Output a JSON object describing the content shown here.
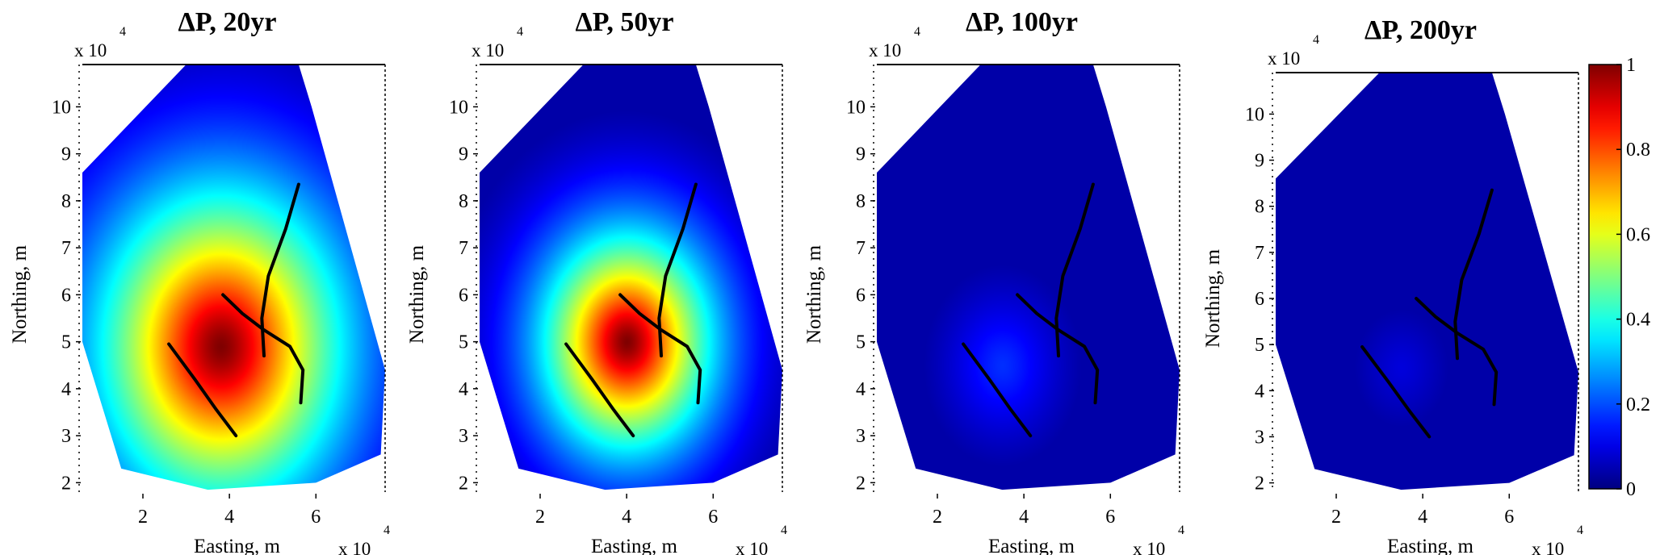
{
  "chart_data": [
    {
      "type": "heatmap",
      "title": "ΔP, 20yr",
      "xlabel": "Easting, m",
      "ylabel": "Northing, m",
      "x_multiplier": "x 10",
      "y_multiplier": "x 10",
      "multiplier_exponent": "4",
      "x_ticks": [
        "2",
        "4",
        "6"
      ],
      "y_ticks": [
        "2",
        "3",
        "4",
        "5",
        "6",
        "7",
        "8",
        "9",
        "10"
      ],
      "xlim": [
        0.6,
        7.6
      ],
      "ylim": [
        1.8,
        10.9
      ],
      "peak": {
        "x": 3.8,
        "y": 4.9,
        "value": 1.0
      },
      "spread": 0.36
    },
    {
      "type": "heatmap",
      "title": "ΔP, 50yr",
      "xlabel": "Easting, m",
      "ylabel": "Northing, m",
      "x_multiplier": "x 10",
      "y_multiplier": "x 10",
      "multiplier_exponent": "4",
      "x_ticks": [
        "2",
        "4",
        "6"
      ],
      "y_ticks": [
        "2",
        "3",
        "4",
        "5",
        "6",
        "7",
        "8",
        "9",
        "10"
      ],
      "xlim": [
        0.6,
        7.6
      ],
      "ylim": [
        1.8,
        10.9
      ],
      "peak": {
        "x": 4.0,
        "y": 5.0,
        "value": 1.0
      },
      "spread": 0.52
    },
    {
      "type": "heatmap",
      "title": "ΔP, 100yr",
      "xlabel": "Easting, m",
      "ylabel": "Northing, m",
      "x_multiplier": "x 10",
      "y_multiplier": "x 10",
      "multiplier_exponent": "4",
      "x_ticks": [
        "2",
        "4",
        "6"
      ],
      "y_ticks": [
        "2",
        "3",
        "4",
        "5",
        "6",
        "7",
        "8",
        "9",
        "10"
      ],
      "xlim": [
        0.6,
        7.6
      ],
      "ylim": [
        1.8,
        10.9
      ],
      "peak": {
        "x": 3.5,
        "y": 4.5,
        "value": 0.17
      },
      "spread": 0.7
    },
    {
      "type": "heatmap",
      "title": "ΔP, 200yr",
      "xlabel": "Easting, m",
      "ylabel": "Northing, m",
      "x_multiplier": "x 10",
      "y_multiplier": "x 10",
      "multiplier_exponent": "4",
      "x_ticks": [
        "2",
        "4",
        "6"
      ],
      "y_ticks": [
        "2",
        "3",
        "4",
        "5",
        "6",
        "7",
        "8",
        "9",
        "10"
      ],
      "xlim": [
        0.6,
        7.6
      ],
      "ylim": [
        1.8,
        10.9
      ],
      "peak": {
        "x": 3.5,
        "y": 4.5,
        "value": 0.09
      },
      "spread": 0.8
    }
  ],
  "domain_outline": [
    [
      0.6,
      8.6
    ],
    [
      3.0,
      10.9
    ],
    [
      5.6,
      10.9
    ],
    [
      5.9,
      10.0
    ],
    [
      7.6,
      4.4
    ],
    [
      7.5,
      2.6
    ],
    [
      6.0,
      2.0
    ],
    [
      3.5,
      1.85
    ],
    [
      1.5,
      2.3
    ],
    [
      0.6,
      5.0
    ]
  ],
  "faults": [
    [
      [
        4.8,
        4.7
      ],
      [
        4.75,
        5.5
      ],
      [
        4.9,
        6.4
      ],
      [
        5.3,
        7.4
      ],
      [
        5.6,
        8.35
      ]
    ],
    [
      [
        5.65,
        3.7
      ],
      [
        5.7,
        4.4
      ],
      [
        5.4,
        4.9
      ],
      [
        4.8,
        5.25
      ],
      [
        4.3,
        5.6
      ],
      [
        3.85,
        6.0
      ]
    ],
    [
      [
        2.6,
        4.95
      ],
      [
        3.2,
        4.2
      ],
      [
        3.7,
        3.55
      ],
      [
        4.15,
        3.0
      ]
    ]
  ],
  "colorbar": {
    "ticks": [
      "0",
      "0.2",
      "0.4",
      "0.6",
      "0.8",
      "1"
    ],
    "range": [
      0,
      1
    ],
    "colormap": "jet"
  },
  "colors": {
    "fault_line": "#000000",
    "axis": "#000000",
    "background": "#ffffff"
  }
}
